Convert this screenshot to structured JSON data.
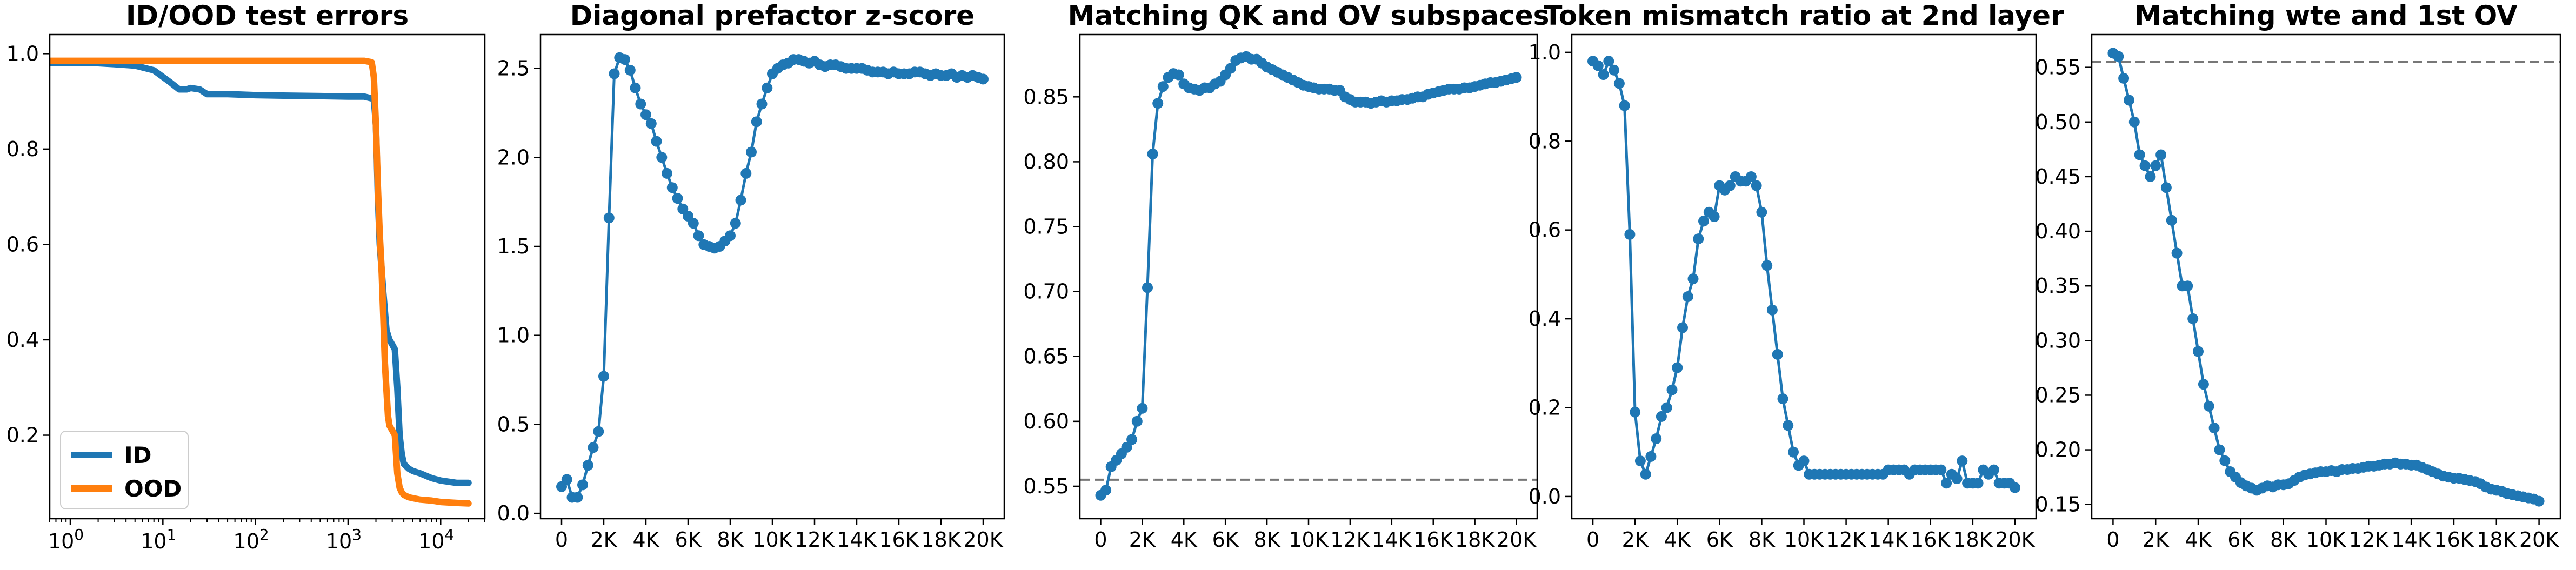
{
  "chart_data": [
    {
      "type": "line",
      "title": "ID/OOD test errors",
      "xscale": "log",
      "xlim": [
        0.6,
        30000
      ],
      "ylim": [
        0.025,
        1.04
      ],
      "xticks": [
        1,
        10,
        100,
        1000,
        10000
      ],
      "xtick_labels": [
        {
          "base": "10",
          "exp": "0"
        },
        {
          "base": "10",
          "exp": "1"
        },
        {
          "base": "10",
          "exp": "2"
        },
        {
          "base": "10",
          "exp": "3"
        },
        {
          "base": "10",
          "exp": "4"
        }
      ],
      "yticks": [
        0.2,
        0.4,
        0.6,
        0.8,
        1.0
      ],
      "ytick_labels": [
        "0.2",
        "0.4",
        "0.6",
        "0.8",
        "1.0"
      ],
      "legend": "lower-left",
      "series": [
        {
          "name": "ID",
          "color": "#1f77b4",
          "x": [
            0.6,
            1,
            2,
            3,
            5,
            8,
            12,
            15,
            18,
            20,
            25,
            30,
            50,
            100,
            200,
            500,
            1000,
            1500,
            1900,
            2000,
            2100,
            2200,
            2400,
            2600,
            2800,
            3000,
            3200,
            3400,
            3600,
            3800,
            4000,
            4500,
            5000,
            6000,
            8000,
            10000,
            15000,
            20000
          ],
          "y": [
            0.98,
            0.98,
            0.98,
            0.978,
            0.975,
            0.965,
            0.94,
            0.925,
            0.925,
            0.928,
            0.925,
            0.915,
            0.915,
            0.913,
            0.912,
            0.911,
            0.91,
            0.91,
            0.905,
            0.85,
            0.7,
            0.6,
            0.5,
            0.42,
            0.4,
            0.39,
            0.38,
            0.3,
            0.2,
            0.16,
            0.14,
            0.13,
            0.125,
            0.12,
            0.11,
            0.105,
            0.1,
            0.1
          ]
        },
        {
          "name": "OOD",
          "color": "#ff7f0e",
          "x": [
            0.6,
            1,
            10,
            100,
            1000,
            1500,
            1800,
            1900,
            2000,
            2100,
            2200,
            2300,
            2400,
            2500,
            2700,
            2800,
            3000,
            3200,
            3400,
            3600,
            3800,
            4000,
            4500,
            5000,
            6000,
            8000,
            10000,
            15000,
            20000
          ],
          "y": [
            0.985,
            0.985,
            0.985,
            0.985,
            0.985,
            0.985,
            0.982,
            0.95,
            0.85,
            0.72,
            0.62,
            0.55,
            0.45,
            0.35,
            0.24,
            0.22,
            0.21,
            0.2,
            0.12,
            0.09,
            0.08,
            0.075,
            0.07,
            0.068,
            0.065,
            0.063,
            0.06,
            0.058,
            0.057
          ]
        }
      ]
    },
    {
      "type": "line",
      "title": "Diagonal prefactor z-score",
      "xlim": [
        -1000,
        21000
      ],
      "ylim": [
        -0.03,
        2.69
      ],
      "xticks": [
        0,
        2000,
        4000,
        6000,
        8000,
        10000,
        12000,
        14000,
        16000,
        18000,
        20000
      ],
      "xtick_labels": [
        "0",
        "2K",
        "4K",
        "6K",
        "8K",
        "10K",
        "12K",
        "14K",
        "16K",
        "18K",
        "20K"
      ],
      "yticks": [
        0,
        0.5,
        1.0,
        1.5,
        2.0,
        2.5
      ],
      "ytick_labels": [
        "0.0",
        "0.5",
        "1.0",
        "1.5",
        "2.0",
        "2.5"
      ],
      "series": [
        {
          "name": "",
          "color": "#1f77b4",
          "markers": true,
          "x": [
            0,
            250,
            500,
            750,
            1000,
            1250,
            1500,
            1750,
            2000,
            2250,
            2500,
            2750,
            3000,
            3250,
            3500,
            3750,
            4000,
            4250,
            4500,
            4750,
            5000,
            5250,
            5500,
            5750,
            6000,
            6250,
            6500,
            6750,
            7000,
            7250,
            7500,
            7750,
            8000,
            8250,
            8500,
            8750,
            9000,
            9250,
            9500,
            9750,
            10000,
            10250,
            10500,
            10750,
            11000,
            11250,
            11500,
            11750,
            12000,
            12250,
            12500,
            12750,
            13000,
            13250,
            13500,
            13750,
            14000,
            14250,
            14500,
            14750,
            15000,
            15250,
            15500,
            15750,
            16000,
            16250,
            16500,
            16750,
            17000,
            17250,
            17500,
            17750,
            18000,
            18250,
            18500,
            18750,
            19000,
            19250,
            19500,
            19750,
            20000
          ],
          "y": [
            0.15,
            0.19,
            0.09,
            0.09,
            0.16,
            0.27,
            0.37,
            0.46,
            0.77,
            1.66,
            2.47,
            2.56,
            2.55,
            2.49,
            2.39,
            2.3,
            2.24,
            2.19,
            2.09,
            2.0,
            1.91,
            1.83,
            1.77,
            1.71,
            1.67,
            1.63,
            1.56,
            1.51,
            1.5,
            1.49,
            1.5,
            1.53,
            1.56,
            1.63,
            1.76,
            1.91,
            2.03,
            2.2,
            2.3,
            2.39,
            2.47,
            2.5,
            2.52,
            2.53,
            2.55,
            2.55,
            2.54,
            2.53,
            2.54,
            2.52,
            2.51,
            2.52,
            2.52,
            2.51,
            2.5,
            2.5,
            2.5,
            2.5,
            2.49,
            2.48,
            2.48,
            2.48,
            2.47,
            2.48,
            2.47,
            2.47,
            2.47,
            2.48,
            2.48,
            2.47,
            2.46,
            2.47,
            2.46,
            2.46,
            2.47,
            2.45,
            2.46,
            2.45,
            2.46,
            2.45,
            2.44
          ]
        }
      ]
    },
    {
      "type": "line",
      "title": "Matching QK and OV subspaces",
      "xlim": [
        -1000,
        21000
      ],
      "ylim": [
        0.525,
        0.898
      ],
      "xticks": [
        0,
        2000,
        4000,
        6000,
        8000,
        10000,
        12000,
        14000,
        16000,
        18000,
        20000
      ],
      "xtick_labels": [
        "0",
        "2K",
        "4K",
        "6K",
        "8K",
        "10K",
        "12K",
        "14K",
        "16K",
        "18K",
        "20K"
      ],
      "yticks": [
        0.55,
        0.6,
        0.65,
        0.7,
        0.75,
        0.8,
        0.85
      ],
      "ytick_labels": [
        "0.55",
        "0.60",
        "0.65",
        "0.70",
        "0.75",
        "0.80",
        "0.85"
      ],
      "hline": {
        "y": 0.555,
        "style": "dashed",
        "color": "#777777"
      },
      "series": [
        {
          "name": "",
          "color": "#1f77b4",
          "markers": true,
          "x": [
            0,
            250,
            500,
            750,
            1000,
            1250,
            1500,
            1750,
            2000,
            2250,
            2500,
            2750,
            3000,
            3250,
            3500,
            3750,
            4000,
            4250,
            4500,
            4750,
            5000,
            5250,
            5500,
            5750,
            6000,
            6250,
            6500,
            6750,
            7000,
            7250,
            7500,
            7750,
            8000,
            8250,
            8500,
            8750,
            9000,
            9250,
            9500,
            9750,
            10000,
            10250,
            10500,
            10750,
            11000,
            11250,
            11500,
            11750,
            12000,
            12250,
            12500,
            12750,
            13000,
            13250,
            13500,
            13750,
            14000,
            14250,
            14500,
            14750,
            15000,
            15250,
            15500,
            15750,
            16000,
            16250,
            16500,
            16750,
            17000,
            17250,
            17500,
            17750,
            18000,
            18250,
            18500,
            18750,
            19000,
            19250,
            19500,
            19750,
            20000
          ],
          "y": [
            0.543,
            0.547,
            0.565,
            0.57,
            0.575,
            0.58,
            0.586,
            0.6,
            0.61,
            0.703,
            0.806,
            0.845,
            0.858,
            0.865,
            0.868,
            0.867,
            0.86,
            0.857,
            0.856,
            0.855,
            0.857,
            0.857,
            0.86,
            0.862,
            0.867,
            0.872,
            0.878,
            0.88,
            0.881,
            0.879,
            0.879,
            0.876,
            0.873,
            0.871,
            0.869,
            0.867,
            0.865,
            0.863,
            0.861,
            0.859,
            0.858,
            0.857,
            0.856,
            0.856,
            0.856,
            0.855,
            0.855,
            0.85,
            0.848,
            0.846,
            0.846,
            0.846,
            0.845,
            0.846,
            0.847,
            0.846,
            0.847,
            0.847,
            0.848,
            0.848,
            0.849,
            0.85,
            0.85,
            0.852,
            0.853,
            0.854,
            0.855,
            0.856,
            0.856,
            0.856,
            0.857,
            0.857,
            0.858,
            0.859,
            0.86,
            0.861,
            0.861,
            0.862,
            0.863,
            0.864,
            0.865
          ]
        }
      ]
    },
    {
      "type": "line",
      "title": "Token mismatch ratio at 2nd layer",
      "xlim": [
        -1000,
        21000
      ],
      "ylim": [
        -0.05,
        1.04
      ],
      "xticks": [
        0,
        2000,
        4000,
        6000,
        8000,
        10000,
        12000,
        14000,
        16000,
        18000,
        20000
      ],
      "xtick_labels": [
        "0",
        "2K",
        "4K",
        "6K",
        "8K",
        "10K",
        "12K",
        "14K",
        "16K",
        "18K",
        "20K"
      ],
      "yticks": [
        0,
        0.2,
        0.4,
        0.6,
        0.8,
        1.0
      ],
      "ytick_labels": [
        "0.0",
        "0.2",
        "0.4",
        "0.6",
        "0.8",
        "1.0"
      ],
      "series": [
        {
          "name": "",
          "color": "#1f77b4",
          "markers": true,
          "x": [
            0,
            250,
            500,
            750,
            1000,
            1250,
            1500,
            1750,
            2000,
            2250,
            2500,
            2750,
            3000,
            3250,
            3500,
            3750,
            4000,
            4250,
            4500,
            4750,
            5000,
            5250,
            5500,
            5750,
            6000,
            6250,
            6500,
            6750,
            7000,
            7250,
            7500,
            7750,
            8000,
            8250,
            8500,
            8750,
            9000,
            9250,
            9500,
            9750,
            10000,
            10250,
            10500,
            10750,
            11000,
            11250,
            11500,
            11750,
            12000,
            12250,
            12500,
            12750,
            13000,
            13250,
            13500,
            13750,
            14000,
            14250,
            14500,
            14750,
            15000,
            15250,
            15500,
            15750,
            16000,
            16250,
            16500,
            16750,
            17000,
            17250,
            17500,
            17750,
            18000,
            18250,
            18500,
            18750,
            19000,
            19250,
            19500,
            19750,
            20000
          ],
          "y": [
            0.98,
            0.97,
            0.95,
            0.98,
            0.96,
            0.93,
            0.88,
            0.59,
            0.19,
            0.08,
            0.05,
            0.09,
            0.13,
            0.18,
            0.2,
            0.24,
            0.29,
            0.38,
            0.45,
            0.49,
            0.58,
            0.62,
            0.64,
            0.63,
            0.7,
            0.69,
            0.7,
            0.72,
            0.71,
            0.71,
            0.72,
            0.7,
            0.64,
            0.52,
            0.42,
            0.32,
            0.22,
            0.16,
            0.1,
            0.07,
            0.08,
            0.05,
            0.05,
            0.05,
            0.05,
            0.05,
            0.05,
            0.05,
            0.05,
            0.05,
            0.05,
            0.05,
            0.05,
            0.05,
            0.05,
            0.05,
            0.06,
            0.06,
            0.06,
            0.06,
            0.05,
            0.06,
            0.06,
            0.06,
            0.06,
            0.06,
            0.06,
            0.03,
            0.05,
            0.04,
            0.08,
            0.03,
            0.03,
            0.03,
            0.06,
            0.05,
            0.06,
            0.03,
            0.03,
            0.03,
            0.02
          ]
        }
      ]
    },
    {
      "type": "line",
      "title": "Matching wte and 1st OV",
      "xlim": [
        -1000,
        21000
      ],
      "ylim": [
        0.137,
        0.58
      ],
      "xticks": [
        0,
        2000,
        4000,
        6000,
        8000,
        10000,
        12000,
        14000,
        16000,
        18000,
        20000
      ],
      "xtick_labels": [
        "0",
        "2K",
        "4K",
        "6K",
        "8K",
        "10K",
        "12K",
        "14K",
        "16K",
        "18K",
        "20K"
      ],
      "yticks": [
        0.15,
        0.2,
        0.25,
        0.3,
        0.35,
        0.4,
        0.45,
        0.5,
        0.55
      ],
      "ytick_labels": [
        "0.15",
        "0.20",
        "0.25",
        "0.30",
        "0.35",
        "0.40",
        "0.45",
        "0.50",
        "0.55"
      ],
      "hline": {
        "y": 0.555,
        "style": "dashed",
        "color": "#777777"
      },
      "series": [
        {
          "name": "",
          "color": "#1f77b4",
          "markers": true,
          "x": [
            0,
            250,
            500,
            750,
            1000,
            1250,
            1500,
            1750,
            2000,
            2250,
            2500,
            2750,
            3000,
            3250,
            3500,
            3750,
            4000,
            4250,
            4500,
            4750,
            5000,
            5250,
            5500,
            5750,
            6000,
            6250,
            6500,
            6750,
            7000,
            7250,
            7500,
            7750,
            8000,
            8250,
            8500,
            8750,
            9000,
            9250,
            9500,
            9750,
            10000,
            10250,
            10500,
            10750,
            11000,
            11250,
            11500,
            11750,
            12000,
            12250,
            12500,
            12750,
            13000,
            13250,
            13500,
            13750,
            14000,
            14250,
            14500,
            14750,
            15000,
            15250,
            15500,
            15750,
            16000,
            16250,
            16500,
            16750,
            17000,
            17250,
            17500,
            17750,
            18000,
            18250,
            18500,
            18750,
            19000,
            19250,
            19500,
            19750,
            20000
          ],
          "y": [
            0.563,
            0.56,
            0.54,
            0.52,
            0.5,
            0.47,
            0.46,
            0.45,
            0.46,
            0.47,
            0.44,
            0.41,
            0.38,
            0.35,
            0.35,
            0.32,
            0.29,
            0.26,
            0.24,
            0.22,
            0.2,
            0.19,
            0.18,
            0.175,
            0.17,
            0.167,
            0.165,
            0.163,
            0.165,
            0.167,
            0.166,
            0.168,
            0.168,
            0.169,
            0.172,
            0.175,
            0.177,
            0.178,
            0.179,
            0.18,
            0.18,
            0.181,
            0.18,
            0.182,
            0.182,
            0.183,
            0.183,
            0.184,
            0.185,
            0.185,
            0.186,
            0.187,
            0.187,
            0.188,
            0.187,
            0.187,
            0.186,
            0.186,
            0.184,
            0.182,
            0.18,
            0.178,
            0.176,
            0.175,
            0.174,
            0.174,
            0.173,
            0.172,
            0.171,
            0.169,
            0.166,
            0.164,
            0.163,
            0.162,
            0.16,
            0.159,
            0.158,
            0.157,
            0.156,
            0.155,
            0.153
          ]
        }
      ]
    }
  ]
}
